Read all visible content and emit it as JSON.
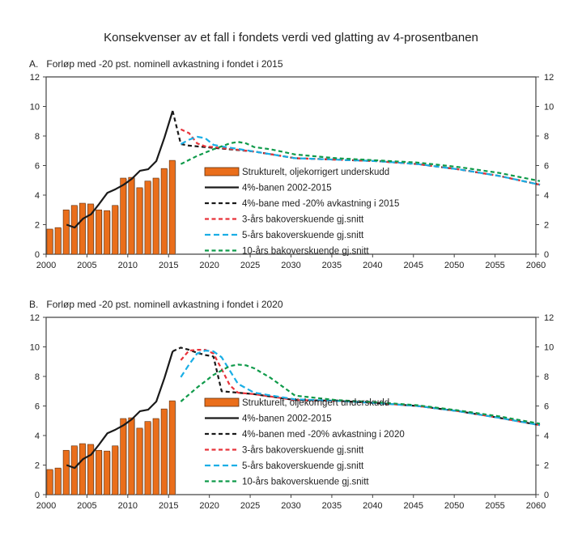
{
  "title": "Konsekvenser av et fall i fondets verdi ved glatting av 4-prosentbanen",
  "colors": {
    "bars": "#ea6e1b",
    "bar_edge": "#5a2c0c",
    "path_2002_2015": "#1a1a1a",
    "scenario_path": "#1a1a1a",
    "avg3": "#e8333a",
    "avg5": "#1aaee5",
    "avg10": "#0f9a4a"
  },
  "chart_data": [
    {
      "id": "A",
      "type": "bar+line",
      "panel_label": "A.",
      "title": "Forløp med -20 pst. nominell avkastning i fondet i 2015",
      "xlim": [
        2000,
        2060
      ],
      "ylim": [
        0,
        12
      ],
      "x_ticks": [
        2000,
        2005,
        2010,
        2015,
        2020,
        2025,
        2030,
        2035,
        2040,
        2045,
        2050,
        2055,
        2060
      ],
      "y_ticks_left": [
        0,
        2,
        4,
        6,
        8,
        10,
        12
      ],
      "y_ticks_right": [
        0,
        2,
        4,
        6,
        8,
        10,
        12
      ],
      "legend_position": "center-right",
      "legend": [
        "Strukturelt, oljekorrigert underskudd",
        "4%-banen 2002-2015",
        "4%-bane med -20% avkastning i 2015",
        "3-års bakoverskuende gj.snitt",
        "5-års bakoverskuende gj.snitt",
        "10-års bakoverskuende gj.snitt"
      ],
      "bars": {
        "name": "Strukturelt, oljekorrigert underskudd",
        "x": [
          2000,
          2001,
          2002,
          2003,
          2004,
          2005,
          2006,
          2007,
          2008,
          2009,
          2010,
          2011,
          2012,
          2013,
          2014,
          2015
        ],
        "values": [
          1.7,
          1.8,
          3.0,
          3.3,
          3.45,
          3.4,
          3.0,
          2.95,
          3.3,
          5.15,
          5.2,
          4.5,
          4.95,
          5.15,
          5.8,
          6.35
        ]
      },
      "series": [
        {
          "name": "4%-banen 2002-2015",
          "style": "solid",
          "color_key": "path_2002_2015",
          "x": [
            2002,
            2003,
            2004,
            2005,
            2006,
            2007,
            2008,
            2009,
            2010,
            2011,
            2012,
            2013,
            2014,
            2015
          ],
          "values": [
            2.0,
            1.8,
            2.4,
            2.7,
            3.4,
            4.15,
            4.4,
            4.7,
            5.1,
            5.65,
            5.75,
            6.3,
            7.9,
            9.7
          ]
        },
        {
          "name": "4%-bane med -20% avkastning i 2015",
          "style": "dashed",
          "color_key": "scenario_path",
          "x": [
            2015,
            2016,
            2017,
            2018,
            2020,
            2025,
            2030,
            2035,
            2040,
            2045,
            2050,
            2055,
            2060
          ],
          "values": [
            9.7,
            7.45,
            7.35,
            7.3,
            7.2,
            6.95,
            6.5,
            6.4,
            6.3,
            6.1,
            5.75,
            5.3,
            4.7
          ]
        },
        {
          "name": "3-års bakoverskuende gj.snitt",
          "style": "dashed",
          "color_key": "avg3",
          "x": [
            2016,
            2017,
            2018,
            2019,
            2020,
            2025,
            2030,
            2035,
            2040,
            2045,
            2050,
            2055,
            2060
          ],
          "values": [
            8.45,
            8.2,
            7.5,
            7.3,
            7.25,
            6.95,
            6.5,
            6.4,
            6.3,
            6.1,
            5.75,
            5.3,
            4.7
          ]
        },
        {
          "name": "5-års bakoverskuende gj.snitt",
          "style": "dashed",
          "color_key": "avg5",
          "x": [
            2016,
            2017,
            2018,
            2019,
            2020,
            2021,
            2025,
            2030,
            2035,
            2040,
            2045,
            2050,
            2055,
            2060
          ],
          "values": [
            7.45,
            7.75,
            7.95,
            7.85,
            7.4,
            7.3,
            6.95,
            6.5,
            6.4,
            6.3,
            6.1,
            5.75,
            5.3,
            4.7
          ]
        },
        {
          "name": "10-års bakoverskuende gj.snitt",
          "style": "dashed",
          "color_key": "avg10",
          "x": [
            2016,
            2018,
            2020,
            2022,
            2023,
            2024,
            2025,
            2027,
            2030,
            2035,
            2040,
            2045,
            2050,
            2055,
            2060
          ],
          "values": [
            6.1,
            6.65,
            7.1,
            7.5,
            7.6,
            7.5,
            7.25,
            7.1,
            6.75,
            6.5,
            6.35,
            6.2,
            5.9,
            5.5,
            4.95
          ]
        }
      ]
    },
    {
      "id": "B",
      "type": "bar+line",
      "panel_label": "B.",
      "title": "Forløp med -20 pst. nominell avkastning i fondet i 2020",
      "xlim": [
        2000,
        2060
      ],
      "ylim": [
        0,
        12
      ],
      "x_ticks": [
        2000,
        2005,
        2010,
        2015,
        2020,
        2025,
        2030,
        2035,
        2040,
        2045,
        2050,
        2055,
        2060
      ],
      "y_ticks_left": [
        0,
        2,
        4,
        6,
        8,
        10,
        12
      ],
      "y_ticks_right": [
        0,
        2,
        4,
        6,
        8,
        10,
        12
      ],
      "legend_position": "center-right",
      "legend": [
        "Strukturelt, oljekorrigert underskudd",
        "4%-banen 2002-2015",
        "4%-banen med -20% avkastning i 2020",
        "3-års bakoverskuende gj.snitt",
        "5-års bakoverskuende gj.snitt",
        "10-års bakoverskuende gj.snitt"
      ],
      "bars": {
        "name": "Strukturelt, oljekorrigert underskudd",
        "x": [
          2000,
          2001,
          2002,
          2003,
          2004,
          2005,
          2006,
          2007,
          2008,
          2009,
          2010,
          2011,
          2012,
          2013,
          2014,
          2015
        ],
        "values": [
          1.7,
          1.8,
          3.0,
          3.3,
          3.45,
          3.4,
          3.0,
          2.95,
          3.3,
          5.15,
          5.2,
          4.5,
          4.95,
          5.15,
          5.8,
          6.35
        ]
      },
      "series": [
        {
          "name": "4%-banen 2002-2015",
          "style": "solid",
          "color_key": "path_2002_2015",
          "x": [
            2002,
            2003,
            2004,
            2005,
            2006,
            2007,
            2008,
            2009,
            2010,
            2011,
            2012,
            2013,
            2014,
            2015
          ],
          "values": [
            2.0,
            1.8,
            2.4,
            2.7,
            3.4,
            4.15,
            4.4,
            4.7,
            5.1,
            5.65,
            5.75,
            6.3,
            7.9,
            9.7
          ]
        },
        {
          "name": "4%-banen med -20% avkastning i 2020",
          "style": "dashed",
          "color_key": "scenario_path",
          "x": [
            2015,
            2016,
            2017,
            2018,
            2019,
            2020,
            2021,
            2025,
            2030,
            2035,
            2040,
            2045,
            2050,
            2055,
            2060
          ],
          "values": [
            9.7,
            9.95,
            9.8,
            9.6,
            9.45,
            9.35,
            7.0,
            6.8,
            6.4,
            6.35,
            6.2,
            6.0,
            5.65,
            5.2,
            4.7
          ]
        },
        {
          "name": "3-års bakoverskuende gj.snitt",
          "style": "dashed",
          "color_key": "avg3",
          "x": [
            2016,
            2017,
            2018,
            2019,
            2020,
            2021,
            2022,
            2023,
            2025,
            2030,
            2035,
            2040,
            2045,
            2050,
            2055,
            2060
          ],
          "values": [
            9.1,
            9.75,
            9.8,
            9.8,
            9.55,
            8.5,
            7.4,
            6.9,
            6.8,
            6.4,
            6.35,
            6.2,
            6.0,
            5.65,
            5.2,
            4.7
          ]
        },
        {
          "name": "5-års bakoverskuende gj.snitt",
          "style": "dashed",
          "color_key": "avg5",
          "x": [
            2016,
            2017,
            2018,
            2019,
            2020,
            2021,
            2022,
            2023,
            2025,
            2030,
            2035,
            2040,
            2045,
            2050,
            2055,
            2060
          ],
          "values": [
            7.95,
            8.8,
            9.55,
            9.75,
            9.7,
            9.3,
            8.4,
            7.5,
            6.9,
            6.45,
            6.35,
            6.2,
            6.0,
            5.65,
            5.2,
            4.7
          ]
        },
        {
          "name": "10-års bakoverskuende gj.snitt",
          "style": "dashed",
          "color_key": "avg10",
          "x": [
            2016,
            2018,
            2020,
            2022,
            2023,
            2024,
            2025,
            2027,
            2029,
            2030,
            2035,
            2040,
            2045,
            2050,
            2055,
            2060
          ],
          "values": [
            6.3,
            7.25,
            8.1,
            8.7,
            8.8,
            8.75,
            8.55,
            7.9,
            7.1,
            6.7,
            6.4,
            6.25,
            6.05,
            5.7,
            5.3,
            4.8
          ]
        }
      ]
    }
  ]
}
